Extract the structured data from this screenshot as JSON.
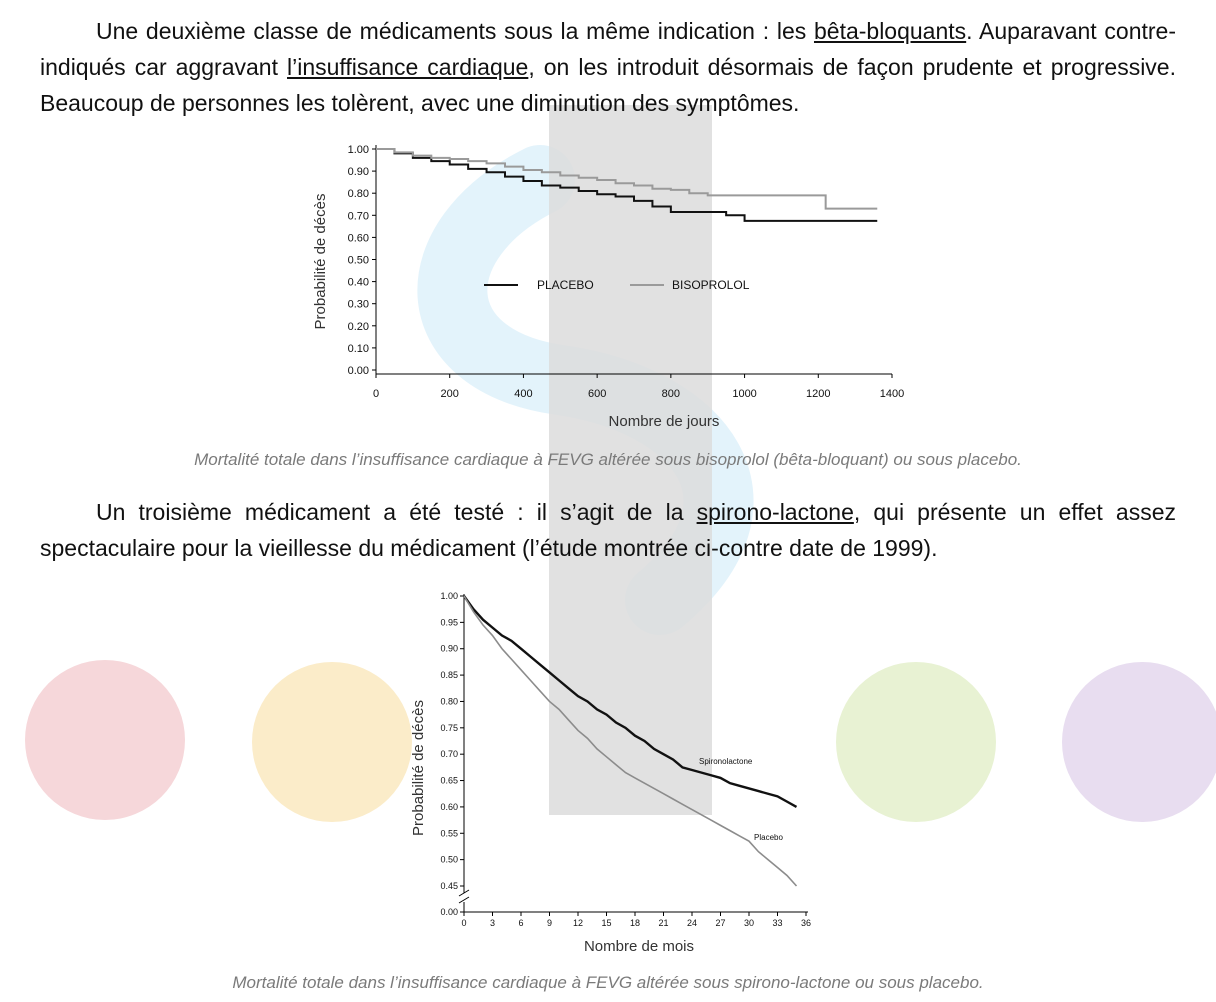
{
  "paragraph1": {
    "before": "Une deuxième classe de médicaments sous la même indication : les ",
    "link1": "bêta-bloquants",
    "mid1": ". Auparavant contre-indiqués car aggravant ",
    "link2": "l’insuffisance cardiaque",
    "after": ", on les introduit désormais de façon prudente et progressive. Beaucoup de personnes les tolèrent, avec une diminution des symptômes."
  },
  "caption1": "Mortalité totale dans l’insuffisance cardiaque à FEVG altérée sous bisoprolol (bêta-bloquant) ou sous placebo.",
  "paragraph2": {
    "before": "Un troisième médicament a été testé : il s’agit de la ",
    "link": "spirono-lactone",
    "after": ", qui présente un effet assez spectaculaire pour la vieillesse du médicament (l’étude montrée ci-contre date de 1999)."
  },
  "caption2": "Mortalité totale dans l’insuffisance cardiaque à FEVG altérée sous spirono-lactone ou sous placebo.",
  "colors": {
    "placebo": "#111111",
    "bisoprolol": "#9a9a9a",
    "spironolactone": "#111111",
    "placebo2": "#8c8c8c"
  },
  "chart_data": [
    {
      "type": "line",
      "xlabel": "Nombre de jours",
      "ylabel": "Probabilité de décès",
      "xlim": [
        0,
        1400
      ],
      "ylim": [
        0,
        1.0
      ],
      "x_ticks": [
        "0",
        "200",
        "400",
        "600",
        "800",
        "1000",
        "1200",
        "1400"
      ],
      "x_tick_values": [
        0,
        200,
        400,
        600,
        800,
        1000,
        1200,
        1400
      ],
      "y_ticks": [
        "0.00",
        "0.10",
        "0.20",
        "0.30",
        "0.40",
        "0.50",
        "0.60",
        "0.70",
        "0.80",
        "0.90",
        "1.00"
      ],
      "y_tick_values": [
        0,
        0.1,
        0.2,
        0.3,
        0.4,
        0.5,
        0.6,
        0.7,
        0.8,
        0.9,
        1.0
      ],
      "legend_placement": "center",
      "series": [
        {
          "name": "PLACEBO",
          "x": [
            0,
            50,
            100,
            150,
            200,
            250,
            300,
            350,
            400,
            450,
            500,
            550,
            600,
            650,
            700,
            750,
            800,
            850,
            900,
            950,
            1000,
            1050,
            1100,
            1150,
            1200,
            1250,
            1300,
            1350
          ],
          "y": [
            1.0,
            0.98,
            0.96,
            0.945,
            0.93,
            0.91,
            0.895,
            0.875,
            0.855,
            0.835,
            0.825,
            0.81,
            0.795,
            0.785,
            0.765,
            0.74,
            0.715,
            0.715,
            0.715,
            0.7,
            0.675,
            0.675,
            0.675,
            0.675,
            0.675,
            0.675,
            0.675,
            0.675
          ]
        },
        {
          "name": "BISOPROLOL",
          "x": [
            0,
            50,
            100,
            150,
            200,
            250,
            300,
            350,
            400,
            450,
            500,
            550,
            600,
            650,
            700,
            750,
            800,
            850,
            900,
            950,
            1000,
            1050,
            1100,
            1150,
            1200,
            1220,
            1250,
            1300,
            1350
          ],
          "y": [
            1.0,
            0.985,
            0.97,
            0.96,
            0.955,
            0.945,
            0.935,
            0.92,
            0.905,
            0.895,
            0.88,
            0.87,
            0.86,
            0.845,
            0.835,
            0.82,
            0.815,
            0.8,
            0.79,
            0.79,
            0.79,
            0.79,
            0.79,
            0.79,
            0.79,
            0.73,
            0.73,
            0.73,
            0.73
          ]
        }
      ]
    },
    {
      "type": "line",
      "xlabel": "Nombre de mois",
      "ylabel": "Probabilité de décès",
      "xlim": [
        0,
        36
      ],
      "ylim": [
        0.45,
        1.0
      ],
      "x_ticks": [
        "0",
        "3",
        "6",
        "9",
        "12",
        "15",
        "18",
        "21",
        "24",
        "27",
        "30",
        "33",
        "36"
      ],
      "x_tick_values": [
        0,
        3,
        6,
        9,
        12,
        15,
        18,
        21,
        24,
        27,
        30,
        33,
        36
      ],
      "y_ticks": [
        "0.00",
        "0.45",
        "0.50",
        "0.55",
        "0.60",
        "0.65",
        "0.70",
        "0.75",
        "0.80",
        "0.85",
        "0.90",
        "0.95",
        "1.00"
      ],
      "y_tick_values": [
        0.0,
        0.45,
        0.5,
        0.55,
        0.6,
        0.65,
        0.7,
        0.75,
        0.8,
        0.85,
        0.9,
        0.95,
        1.0
      ],
      "axis_break": true,
      "series": [
        {
          "name": "Spironolactone",
          "x": [
            0,
            1,
            2,
            3,
            4,
            5,
            6,
            7,
            8,
            9,
            10,
            11,
            12,
            13,
            14,
            15,
            16,
            17,
            18,
            19,
            20,
            21,
            22,
            23,
            24,
            25,
            26,
            27,
            28,
            29,
            30,
            31,
            32,
            33,
            34,
            35
          ],
          "y": [
            1.0,
            0.975,
            0.955,
            0.94,
            0.925,
            0.915,
            0.9,
            0.885,
            0.87,
            0.855,
            0.84,
            0.825,
            0.81,
            0.8,
            0.785,
            0.775,
            0.76,
            0.75,
            0.735,
            0.725,
            0.71,
            0.7,
            0.69,
            0.675,
            0.67,
            0.665,
            0.66,
            0.655,
            0.645,
            0.64,
            0.635,
            0.63,
            0.625,
            0.62,
            0.61,
            0.6
          ]
        },
        {
          "name": "Placebo",
          "x": [
            0,
            1,
            2,
            3,
            4,
            5,
            6,
            7,
            8,
            9,
            10,
            11,
            12,
            13,
            14,
            15,
            16,
            17,
            18,
            19,
            20,
            21,
            22,
            23,
            24,
            25,
            26,
            27,
            28,
            29,
            30,
            31,
            32,
            33,
            34,
            35
          ],
          "y": [
            1.0,
            0.97,
            0.945,
            0.925,
            0.9,
            0.88,
            0.86,
            0.84,
            0.82,
            0.8,
            0.785,
            0.765,
            0.745,
            0.73,
            0.71,
            0.695,
            0.68,
            0.665,
            0.655,
            0.645,
            0.635,
            0.625,
            0.615,
            0.605,
            0.595,
            0.585,
            0.575,
            0.565,
            0.555,
            0.545,
            0.535,
            0.515,
            0.5,
            0.485,
            0.47,
            0.45
          ]
        }
      ]
    }
  ]
}
